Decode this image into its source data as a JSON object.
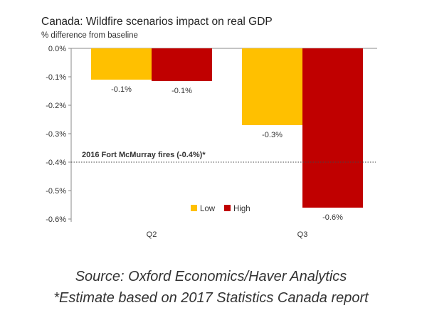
{
  "chart_data": {
    "type": "bar",
    "title": "Canada: Wildfire scenarios impact on real GDP",
    "subtitle": "% difference from baseline",
    "categories": [
      "Q2",
      "Q3"
    ],
    "series": [
      {
        "name": "Low",
        "color": "#FFC000",
        "values": [
          -0.11,
          -0.27
        ],
        "labels": [
          "-0.1%",
          "-0.3%"
        ]
      },
      {
        "name": "High",
        "color": "#C00000",
        "values": [
          -0.115,
          -0.56
        ],
        "labels": [
          "-0.1%",
          "-0.6%"
        ]
      }
    ],
    "ylim": [
      -0.6,
      0.0
    ],
    "yticks": [
      0.0,
      -0.1,
      -0.2,
      -0.3,
      -0.4,
      -0.5,
      -0.6
    ],
    "ytick_labels": [
      "0.0%",
      "-0.1%",
      "-0.2%",
      "-0.3%",
      "-0.4%",
      "-0.5%",
      "-0.6%"
    ],
    "reference_line": {
      "value": -0.4,
      "label": "2016 Fort McMurray fires (-0.4%)*",
      "style": "dotted"
    },
    "legend_position": "bottom-center",
    "grid": false
  },
  "footer": {
    "source": "Source: Oxford Economics/Haver Analytics",
    "note": "*Estimate based  on 2017 Statistics Canada report"
  }
}
